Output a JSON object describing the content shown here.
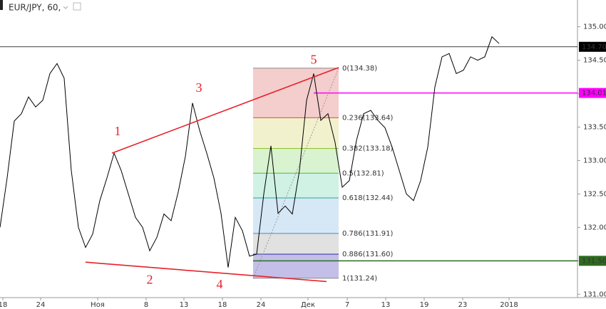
{
  "chart_data": {
    "type": "line",
    "title": "EUR/JPY, 60,",
    "x": [
      0,
      1,
      2,
      3,
      4,
      5,
      6,
      7,
      8,
      9,
      10,
      11,
      12,
      13,
      14,
      15,
      16,
      17,
      18,
      19,
      20,
      21,
      22,
      23,
      24,
      25,
      26,
      27,
      28,
      29,
      30,
      31,
      32,
      33,
      34,
      35,
      36,
      37,
      38,
      39,
      40,
      41,
      42,
      43,
      44,
      45,
      46,
      47,
      48,
      49,
      50,
      51,
      52,
      53,
      54,
      55,
      56,
      57,
      58,
      59,
      60,
      61,
      62,
      63,
      64,
      65,
      66,
      67,
      68,
      69,
      70
    ],
    "series": [
      {
        "name": "EUR/JPY",
        "color": "#000000",
        "values": [
          132.0,
          132.74,
          133.59,
          133.7,
          133.95,
          133.8,
          133.9,
          134.3,
          134.45,
          134.23,
          132.85,
          132.0,
          131.7,
          131.9,
          132.4,
          132.74,
          133.11,
          132.85,
          132.5,
          132.15,
          132.0,
          131.65,
          131.85,
          132.2,
          132.1,
          132.53,
          133.06,
          133.86,
          133.45,
          133.11,
          132.74,
          132.21,
          131.4,
          132.15,
          131.95,
          131.57,
          131.6,
          132.5,
          133.22,
          132.21,
          132.32,
          132.2,
          132.85,
          133.9,
          134.3,
          133.6,
          133.7,
          133.27,
          132.6,
          132.7,
          133.3,
          133.7,
          133.75,
          133.6,
          133.49,
          133.2,
          132.85,
          132.5,
          132.4,
          132.7,
          133.2,
          134.1,
          134.55,
          134.6,
          134.3,
          134.35,
          134.55,
          134.5,
          134.55,
          134.85,
          134.75
        ]
      }
    ],
    "xlim": [
      0,
      81
    ],
    "ylim": [
      130.95,
      135.4
    ],
    "xticks": [
      {
        "value": 0.4,
        "label": "18"
      },
      {
        "value": 5.7,
        "label": "24"
      },
      {
        "value": 13.7,
        "label": "Ноя"
      },
      {
        "value": 20.5,
        "label": "8"
      },
      {
        "value": 25.8,
        "label": "13"
      },
      {
        "value": 31.2,
        "label": "18"
      },
      {
        "value": 36.6,
        "label": "24"
      },
      {
        "value": 43.2,
        "label": "Дек"
      },
      {
        "value": 48.7,
        "label": "7"
      },
      {
        "value": 54.1,
        "label": "13"
      },
      {
        "value": 59.5,
        "label": "19"
      },
      {
        "value": 64.9,
        "label": "23"
      },
      {
        "value": 71.4,
        "label": "2018"
      }
    ],
    "yticks": [
      {
        "value": 131,
        "label": "131.00"
      },
      {
        "value": 131.5,
        "label": "131.50"
      },
      {
        "value": 132,
        "label": "132.00"
      },
      {
        "value": 132.5,
        "label": "132.50"
      },
      {
        "value": 133,
        "label": "133.00"
      },
      {
        "value": 133.5,
        "label": "133.50"
      },
      {
        "value": 134,
        "label": "134.00"
      },
      {
        "value": 134.5,
        "label": "134.50"
      },
      {
        "value": 135,
        "label": "135.00"
      }
    ],
    "price_lines": [
      {
        "value": 134.7,
        "label": "134.70",
        "color": "#000000",
        "from": 0
      },
      {
        "value": 134.01,
        "label": "134.01",
        "color": "#ff00ff",
        "from": 44
      },
      {
        "value": 131.5,
        "label": "131.50",
        "color": "#2e6b1e",
        "from": 35.5
      }
    ],
    "trendlines": [
      {
        "x": [
          15.7,
          47.5
        ],
        "y": [
          133.11,
          134.39
        ],
        "color": "#e8202a"
      },
      {
        "x": [
          12,
          45.8
        ],
        "y": [
          131.48,
          131.19
        ],
        "color": "#e8202a"
      }
    ],
    "waves": [
      {
        "label": "1",
        "x": 16.5,
        "y": 133.42
      },
      {
        "label": "2",
        "x": 21,
        "y": 131.2
      },
      {
        "label": "3",
        "x": 27.9,
        "y": 134.07
      },
      {
        "label": "4",
        "x": 30.8,
        "y": 131.13
      },
      {
        "label": "5",
        "x": 44,
        "y": 134.49
      }
    ],
    "fib": {
      "x": [
        35.5,
        47.5
      ],
      "levels": [
        {
          "value": 134.38,
          "label": "0(134.38)",
          "color": "#888888",
          "fill": "#f2c4c4"
        },
        {
          "value": 133.64,
          "label": "0.236(133.64)",
          "color": "#e04848",
          "fill": "#eef0c4"
        },
        {
          "value": 133.18,
          "label": "0.382(133.18)",
          "color": "#8cbf2a",
          "fill": "#d2f0c8"
        },
        {
          "value": 132.81,
          "label": "0.5(132.81)",
          "color": "#3cbf3c",
          "fill": "#c8f0e0"
        },
        {
          "value": 132.44,
          "label": "0.618(132.44)",
          "color": "#2aa398",
          "fill": "#cfe4f4"
        },
        {
          "value": 131.91,
          "label": "0.786(131.91)",
          "color": "#3a8fd0",
          "fill": "#dcdcdc"
        },
        {
          "value": 131.6,
          "label": "0.886(131.60)",
          "color": "#2a2aa0",
          "fill": "#b8b4e4"
        },
        {
          "value": 131.24,
          "label": "1(131.24)",
          "color": "#888888",
          "fill": "none"
        }
      ]
    }
  }
}
